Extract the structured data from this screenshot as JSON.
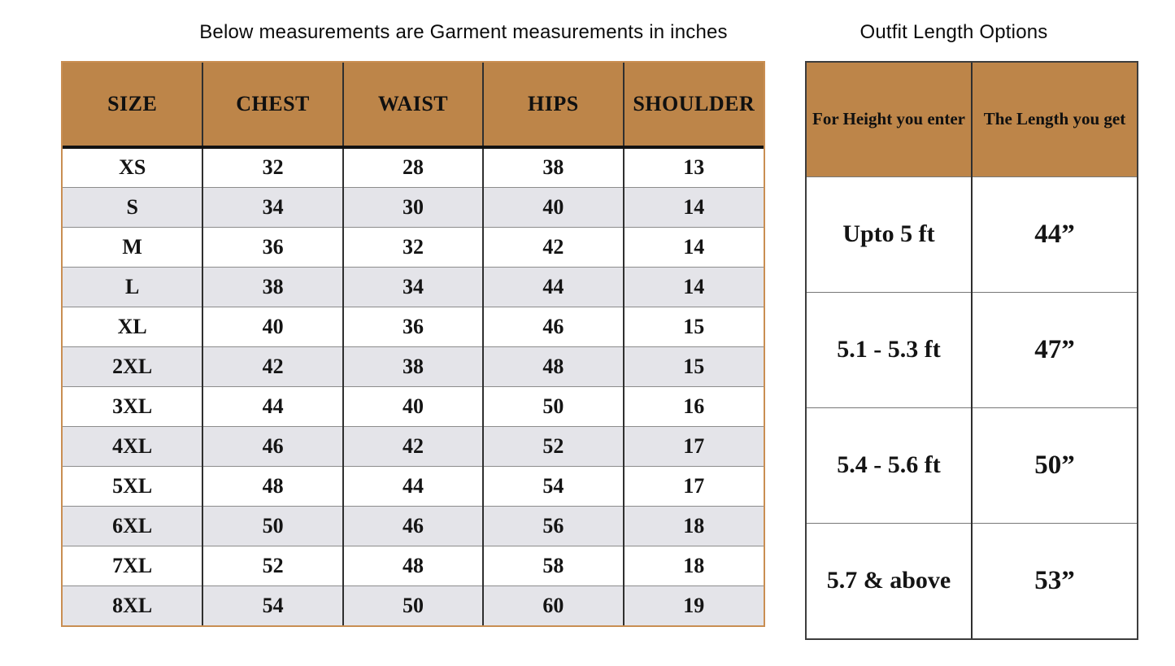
{
  "left_table": {
    "title": "Below measurements are Garment measurements in inches",
    "columns": [
      "SIZE",
      "CHEST",
      "WAIST",
      "HIPS",
      "SHOULDER"
    ],
    "rows": [
      {
        "size": "XS",
        "chest": "32",
        "waist": "28",
        "hips": "38",
        "shoulder": "13"
      },
      {
        "size": "S",
        "chest": "34",
        "waist": "30",
        "hips": "40",
        "shoulder": "14"
      },
      {
        "size": "M",
        "chest": "36",
        "waist": "32",
        "hips": "42",
        "shoulder": "14"
      },
      {
        "size": "L",
        "chest": "38",
        "waist": "34",
        "hips": "44",
        "shoulder": "14"
      },
      {
        "size": "XL",
        "chest": "40",
        "waist": "36",
        "hips": "46",
        "shoulder": "15"
      },
      {
        "size": "2XL",
        "chest": "42",
        "waist": "38",
        "hips": "48",
        "shoulder": "15"
      },
      {
        "size": "3XL",
        "chest": "44",
        "waist": "40",
        "hips": "50",
        "shoulder": "16"
      },
      {
        "size": "4XL",
        "chest": "46",
        "waist": "42",
        "hips": "52",
        "shoulder": "17"
      },
      {
        "size": "5XL",
        "chest": "48",
        "waist": "44",
        "hips": "54",
        "shoulder": "17"
      },
      {
        "size": "6XL",
        "chest": "50",
        "waist": "46",
        "hips": "56",
        "shoulder": "18"
      },
      {
        "size": "7XL",
        "chest": "52",
        "waist": "48",
        "hips": "58",
        "shoulder": "18"
      },
      {
        "size": "8XL",
        "chest": "54",
        "waist": "50",
        "hips": "60",
        "shoulder": "19"
      }
    ]
  },
  "right_table": {
    "title": "Outfit Length Options",
    "columns": [
      "For Height you enter",
      "The Length you get"
    ],
    "rows": [
      {
        "height": "Upto 5 ft",
        "length": "44”"
      },
      {
        "height": "5.1 - 5.3 ft",
        "length": "47”"
      },
      {
        "height": "5.4 - 5.6 ft",
        "length": "50”"
      },
      {
        "height": "5.7 & above",
        "length": "53”"
      }
    ]
  },
  "colors": {
    "header_bg": "#bd8549",
    "stripe_bg": "#e4e4e9",
    "row_bg": "#ffffff",
    "left_table_outer_border": "#c98e52",
    "right_table_outer_border": "#3d3d3d",
    "grid_line_dark": "#2f2f2f",
    "grid_line_gray": "#8c8c8c",
    "header_divider": "#121212",
    "text": "#141414"
  }
}
